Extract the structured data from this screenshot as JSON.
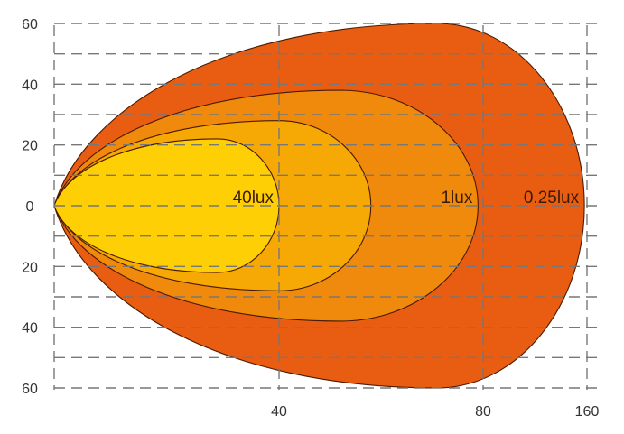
{
  "chart_data": {
    "type": "area",
    "title": "",
    "xlabel": "",
    "ylabel": "",
    "x_ticks": [
      "40",
      "80",
      "160"
    ],
    "x_tick_values": [
      40,
      80,
      160
    ],
    "y_ticks": [
      "60",
      "40",
      "20",
      "0",
      "20",
      "40",
      "60"
    ],
    "y_tick_values": [
      60,
      40,
      20,
      0,
      -20,
      -40,
      -60
    ],
    "ylim": [
      -60,
      60
    ],
    "xlim": [
      0,
      160
    ],
    "x_scale": "piecewise (0, 40, 80, 160 at grid lines)",
    "grid": true,
    "contours": [
      {
        "label": "0.25lux",
        "reach": 158,
        "half_width": 60,
        "widest_at": 71,
        "color": "#e85d12"
      },
      {
        "label": "1lux",
        "reach": 79,
        "half_width": 38,
        "widest_at": 52,
        "color": "#f08a0c"
      },
      {
        "label": "",
        "reach": 58,
        "half_width": 28,
        "widest_at": 40,
        "color": "#f6a805"
      },
      {
        "label": "40lux",
        "reach": 40,
        "half_width": 22,
        "widest_at": 29,
        "color": "#ffcf06"
      }
    ]
  }
}
